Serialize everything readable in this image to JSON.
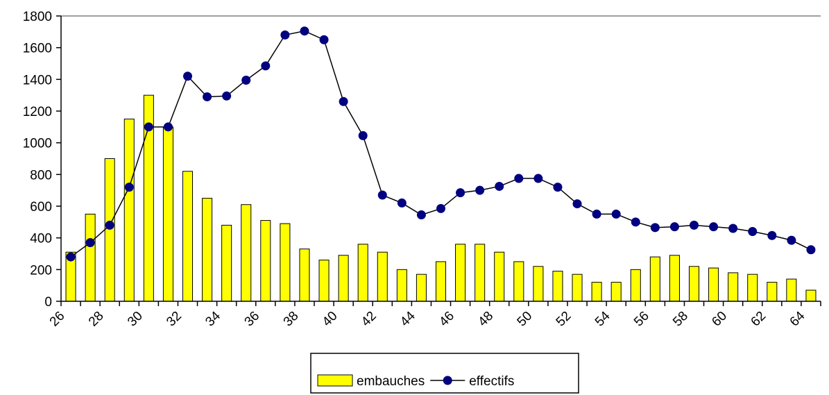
{
  "chart_data": {
    "type": "bar-line",
    "categories": [
      "26",
      null,
      "28",
      null,
      "30",
      null,
      "32",
      null,
      "34",
      null,
      "36",
      null,
      "38",
      null,
      "40",
      null,
      "42",
      null,
      "44",
      null,
      "46",
      null,
      "48",
      null,
      "50",
      null,
      "52",
      null,
      "54",
      null,
      "56",
      null,
      "58",
      null,
      "60",
      null,
      "62",
      null,
      "64"
    ],
    "series": [
      {
        "name": "embauches",
        "type": "bar",
        "color": "#ffff00",
        "values": [
          310,
          550,
          900,
          1150,
          1300,
          1100,
          820,
          650,
          480,
          610,
          510,
          490,
          330,
          260,
          290,
          360,
          310,
          200,
          170,
          250,
          360,
          360,
          310,
          250,
          220,
          190,
          170,
          120,
          120,
          200,
          280,
          290,
          220,
          210,
          180,
          170,
          120,
          140,
          70
        ]
      },
      {
        "name": "effectifs",
        "type": "line",
        "color": "#000080",
        "values": [
          280,
          370,
          480,
          720,
          1100,
          1100,
          1420,
          1290,
          1295,
          1395,
          1485,
          1680,
          1705,
          1650,
          1260,
          1045,
          670,
          620,
          545,
          585,
          685,
          700,
          725,
          775,
          775,
          720,
          615,
          550,
          550,
          500,
          465,
          470,
          480,
          470,
          460,
          440,
          415,
          385,
          325
        ]
      }
    ],
    "ylim": [
      0,
      1800
    ],
    "yticks": [
      0,
      200,
      400,
      600,
      800,
      1000,
      1200,
      1400,
      1600,
      1800
    ],
    "grid": false,
    "legend": "bottom"
  }
}
